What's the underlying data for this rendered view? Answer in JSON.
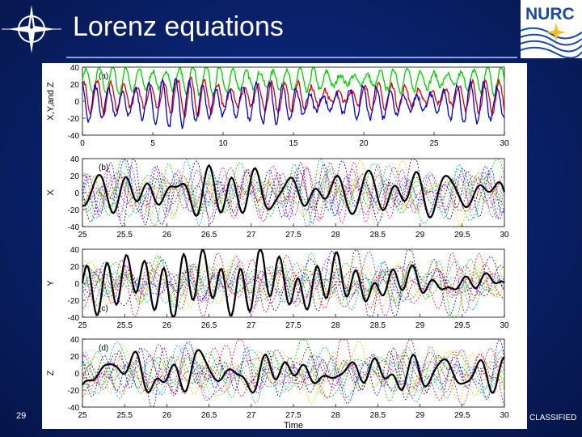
{
  "slide": {
    "title": "Lorenz equations",
    "page_number": "29",
    "classification": "CLASSIFIED",
    "logo_text": "NURC",
    "background": "#0a2370",
    "logo_color": "#1b4aa0"
  },
  "chart_data": [
    {
      "type": "line",
      "panel": "(a)",
      "ylabel": "X,Y,and Z",
      "xlim": [
        0,
        30
      ],
      "ylim": [
        -40,
        40
      ],
      "xticks": [
        0,
        5,
        10,
        15,
        20,
        25,
        30
      ],
      "yticks": [
        40,
        20,
        0,
        -20,
        -40
      ],
      "series": [
        {
          "color": "#00cc00",
          "base": 25,
          "amp": 12,
          "freq": 2.5
        },
        {
          "color": "#dd0000",
          "base": 5,
          "amp": 14,
          "freq": 2.5
        },
        {
          "color": "#0000cc",
          "base": -2,
          "amp": 18,
          "freq": 2.5
        }
      ]
    },
    {
      "type": "line",
      "panel": "(b)",
      "ylabel": "X",
      "xlim": [
        25,
        30
      ],
      "ylim": [
        -40,
        40
      ],
      "xticks": [
        25,
        25.5,
        26,
        26.5,
        27,
        27.5,
        28,
        28.5,
        29,
        29.5,
        30
      ],
      "yticks": [
        40,
        20,
        0,
        -20,
        -40
      ],
      "bold_series": {
        "color": "#000000"
      },
      "ensemble_colors": [
        "#00cc00",
        "#dd0000",
        "#0000cc",
        "#00aaaa",
        "#cc00cc",
        "#cccc00"
      ]
    },
    {
      "type": "line",
      "panel": "(c)",
      "ylabel": "Y",
      "xlim": [
        25,
        30
      ],
      "ylim": [
        -40,
        40
      ],
      "xticks": [
        25,
        25.5,
        26,
        26.5,
        27,
        27.5,
        28,
        28.5,
        29,
        29.5,
        30
      ],
      "yticks": [
        40,
        20,
        0,
        -20,
        -40
      ],
      "bold_series": {
        "color": "#000000"
      },
      "ensemble_colors": [
        "#00cc00",
        "#dd0000",
        "#0000cc",
        "#00aaaa",
        "#cc00cc",
        "#cccc00"
      ]
    },
    {
      "type": "line",
      "panel": "(d)",
      "ylabel": "Z",
      "xlabel": "Time",
      "xlim": [
        25,
        30
      ],
      "ylim": [
        -40,
        40
      ],
      "xticks": [
        25,
        25.5,
        26,
        26.5,
        27,
        27.5,
        28,
        28.5,
        29,
        29.5,
        30
      ],
      "yticks": [
        40,
        20,
        0,
        -20,
        -40
      ],
      "bold_series": {
        "color": "#000000"
      },
      "ensemble_colors": [
        "#00cc00",
        "#dd0000",
        "#0000cc",
        "#00aaaa",
        "#cc00cc",
        "#cccc00"
      ]
    }
  ]
}
